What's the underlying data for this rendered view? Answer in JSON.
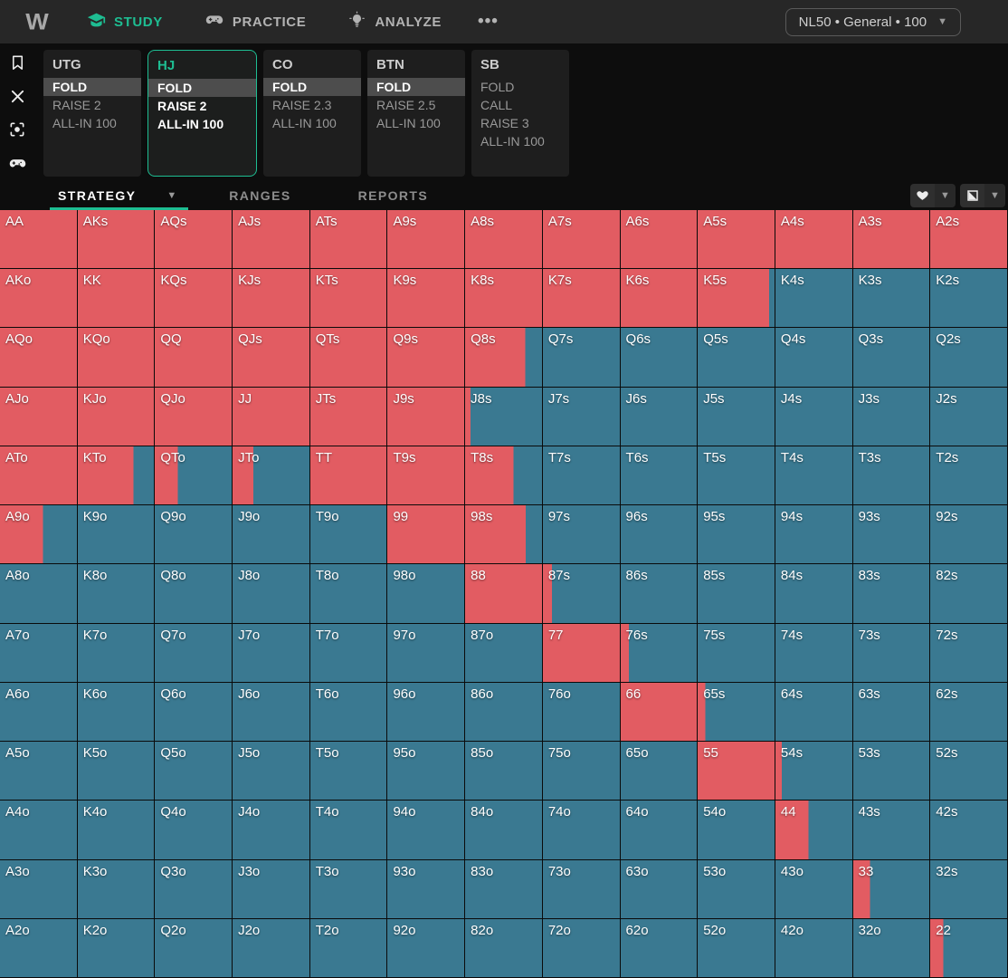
{
  "topbar": {
    "logo": "W",
    "nav": [
      {
        "label": "STUDY",
        "active": true
      },
      {
        "label": "PRACTICE",
        "active": false
      },
      {
        "label": "ANALYZE",
        "active": false
      }
    ],
    "more_label": "•••",
    "solution_selector": {
      "label": "NL50 • General • 100"
    }
  },
  "sidebar": {
    "icons": [
      "bookmark",
      "close",
      "capture",
      "practice"
    ]
  },
  "positions": [
    {
      "name": "UTG",
      "active": false,
      "actions": [
        {
          "label": "FOLD",
          "highlight": true,
          "bold": true
        },
        {
          "label": "RAISE 2",
          "highlight": false,
          "bold": false
        },
        {
          "label": "ALL-IN 100",
          "highlight": false,
          "bold": false
        }
      ]
    },
    {
      "name": "HJ",
      "active": true,
      "actions": [
        {
          "label": "FOLD",
          "highlight": true,
          "bold": true
        },
        {
          "label": "RAISE 2",
          "highlight": false,
          "bold": true
        },
        {
          "label": "ALL-IN 100",
          "highlight": false,
          "bold": true
        }
      ]
    },
    {
      "name": "CO",
      "active": false,
      "actions": [
        {
          "label": "FOLD",
          "highlight": true,
          "bold": true
        },
        {
          "label": "RAISE 2.3",
          "highlight": false,
          "bold": false
        },
        {
          "label": "ALL-IN 100",
          "highlight": false,
          "bold": false
        }
      ]
    },
    {
      "name": "BTN",
      "active": false,
      "actions": [
        {
          "label": "FOLD",
          "highlight": true,
          "bold": true
        },
        {
          "label": "RAISE 2.5",
          "highlight": false,
          "bold": false
        },
        {
          "label": "ALL-IN 100",
          "highlight": false,
          "bold": false
        }
      ]
    },
    {
      "name": "SB",
      "active": false,
      "actions": [
        {
          "label": "FOLD",
          "highlight": false,
          "bold": false
        },
        {
          "label": "CALL",
          "highlight": false,
          "bold": false
        },
        {
          "label": "RAISE 3",
          "highlight": false,
          "bold": false
        },
        {
          "label": "ALL-IN 100",
          "highlight": false,
          "bold": false
        }
      ]
    }
  ],
  "tabs": {
    "items": [
      {
        "label": "STRATEGY",
        "active": true,
        "caret": true
      },
      {
        "label": "RANGES",
        "active": false
      },
      {
        "label": "REPORTS",
        "active": false
      }
    ]
  },
  "colors": {
    "raise": "#e25c62",
    "fold": "#3a7991",
    "accent": "#1ebd92"
  },
  "grid": {
    "legend": {
      "raise_color_action": "RAISE 2",
      "fold_color_action": "FOLD"
    },
    "rows": [
      [
        [
          "AA",
          100
        ],
        [
          "AKs",
          100
        ],
        [
          "AQs",
          100
        ],
        [
          "AJs",
          100
        ],
        [
          "ATs",
          100
        ],
        [
          "A9s",
          100
        ],
        [
          "A8s",
          100
        ],
        [
          "A7s",
          100
        ],
        [
          "A6s",
          100
        ],
        [
          "A5s",
          100
        ],
        [
          "A4s",
          100
        ],
        [
          "A3s",
          100
        ],
        [
          "A2s",
          100
        ]
      ],
      [
        [
          "AKo",
          100
        ],
        [
          "KK",
          100
        ],
        [
          "KQs",
          100
        ],
        [
          "KJs",
          100
        ],
        [
          "KTs",
          100
        ],
        [
          "K9s",
          100
        ],
        [
          "K8s",
          100
        ],
        [
          "K7s",
          100
        ],
        [
          "K6s",
          100
        ],
        [
          "K5s",
          93
        ],
        [
          "K4s",
          0
        ],
        [
          "K3s",
          0
        ],
        [
          "K2s",
          0
        ]
      ],
      [
        [
          "AQo",
          100
        ],
        [
          "KQo",
          100
        ],
        [
          "QQ",
          100
        ],
        [
          "QJs",
          100
        ],
        [
          "QTs",
          100
        ],
        [
          "Q9s",
          100
        ],
        [
          "Q8s",
          78
        ],
        [
          "Q7s",
          0
        ],
        [
          "Q6s",
          0
        ],
        [
          "Q5s",
          0
        ],
        [
          "Q4s",
          0
        ],
        [
          "Q3s",
          0
        ],
        [
          "Q2s",
          0
        ]
      ],
      [
        [
          "AJo",
          100
        ],
        [
          "KJo",
          100
        ],
        [
          "QJo",
          100
        ],
        [
          "JJ",
          100
        ],
        [
          "JTs",
          100
        ],
        [
          "J9s",
          100
        ],
        [
          "J8s",
          7
        ],
        [
          "J7s",
          0
        ],
        [
          "J6s",
          0
        ],
        [
          "J5s",
          0
        ],
        [
          "J4s",
          0
        ],
        [
          "J3s",
          0
        ],
        [
          "J2s",
          0
        ]
      ],
      [
        [
          "ATo",
          100
        ],
        [
          "KTo",
          73
        ],
        [
          "QTo",
          30
        ],
        [
          "JTo",
          27
        ],
        [
          "TT",
          100
        ],
        [
          "T9s",
          100
        ],
        [
          "T8s",
          63
        ],
        [
          "T7s",
          0
        ],
        [
          "T6s",
          0
        ],
        [
          "T5s",
          0
        ],
        [
          "T4s",
          0
        ],
        [
          "T3s",
          0
        ],
        [
          "T2s",
          0
        ]
      ],
      [
        [
          "A9o",
          56
        ],
        [
          "K9o",
          0
        ],
        [
          "Q9o",
          0
        ],
        [
          "J9o",
          0
        ],
        [
          "T9o",
          0
        ],
        [
          "99",
          100
        ],
        [
          "98s",
          79
        ],
        [
          "97s",
          0
        ],
        [
          "96s",
          0
        ],
        [
          "95s",
          0
        ],
        [
          "94s",
          0
        ],
        [
          "93s",
          0
        ],
        [
          "92s",
          0
        ]
      ],
      [
        [
          "A8o",
          0
        ],
        [
          "K8o",
          0
        ],
        [
          "Q8o",
          0
        ],
        [
          "J8o",
          0
        ],
        [
          "T8o",
          0
        ],
        [
          "98o",
          0
        ],
        [
          "88",
          100
        ],
        [
          "87s",
          12
        ],
        [
          "86s",
          0
        ],
        [
          "85s",
          0
        ],
        [
          "84s",
          0
        ],
        [
          "83s",
          0
        ],
        [
          "82s",
          0
        ]
      ],
      [
        [
          "A7o",
          0
        ],
        [
          "K7o",
          0
        ],
        [
          "Q7o",
          0
        ],
        [
          "J7o",
          0
        ],
        [
          "T7o",
          0
        ],
        [
          "97o",
          0
        ],
        [
          "87o",
          0
        ],
        [
          "77",
          100
        ],
        [
          "76s",
          11
        ],
        [
          "75s",
          0
        ],
        [
          "74s",
          0
        ],
        [
          "73s",
          0
        ],
        [
          "72s",
          0
        ]
      ],
      [
        [
          "A6o",
          0
        ],
        [
          "K6o",
          0
        ],
        [
          "Q6o",
          0
        ],
        [
          "J6o",
          0
        ],
        [
          "T6o",
          0
        ],
        [
          "96o",
          0
        ],
        [
          "86o",
          0
        ],
        [
          "76o",
          0
        ],
        [
          "66",
          100
        ],
        [
          "65s",
          10
        ],
        [
          "64s",
          0
        ],
        [
          "63s",
          0
        ],
        [
          "62s",
          0
        ]
      ],
      [
        [
          "A5o",
          0
        ],
        [
          "K5o",
          0
        ],
        [
          "Q5o",
          0
        ],
        [
          "J5o",
          0
        ],
        [
          "T5o",
          0
        ],
        [
          "95o",
          0
        ],
        [
          "85o",
          0
        ],
        [
          "75o",
          0
        ],
        [
          "65o",
          0
        ],
        [
          "55",
          100
        ],
        [
          "54s",
          8
        ],
        [
          "53s",
          0
        ],
        [
          "52s",
          0
        ]
      ],
      [
        [
          "A4o",
          0
        ],
        [
          "K4o",
          0
        ],
        [
          "Q4o",
          0
        ],
        [
          "J4o",
          0
        ],
        [
          "T4o",
          0
        ],
        [
          "94o",
          0
        ],
        [
          "84o",
          0
        ],
        [
          "74o",
          0
        ],
        [
          "64o",
          0
        ],
        [
          "54o",
          0
        ],
        [
          "44",
          43
        ],
        [
          "43s",
          0
        ],
        [
          "42s",
          0
        ]
      ],
      [
        [
          "A3o",
          0
        ],
        [
          "K3o",
          0
        ],
        [
          "Q3o",
          0
        ],
        [
          "J3o",
          0
        ],
        [
          "T3o",
          0
        ],
        [
          "93o",
          0
        ],
        [
          "83o",
          0
        ],
        [
          "73o",
          0
        ],
        [
          "63o",
          0
        ],
        [
          "53o",
          0
        ],
        [
          "43o",
          0
        ],
        [
          "33",
          22
        ],
        [
          "32s",
          0
        ]
      ],
      [
        [
          "A2o",
          0
        ],
        [
          "K2o",
          0
        ],
        [
          "Q2o",
          0
        ],
        [
          "J2o",
          0
        ],
        [
          "T2o",
          0
        ],
        [
          "92o",
          0
        ],
        [
          "82o",
          0
        ],
        [
          "72o",
          0
        ],
        [
          "62o",
          0
        ],
        [
          "52o",
          0
        ],
        [
          "42o",
          0
        ],
        [
          "32o",
          0
        ],
        [
          "22",
          17
        ]
      ]
    ]
  }
}
